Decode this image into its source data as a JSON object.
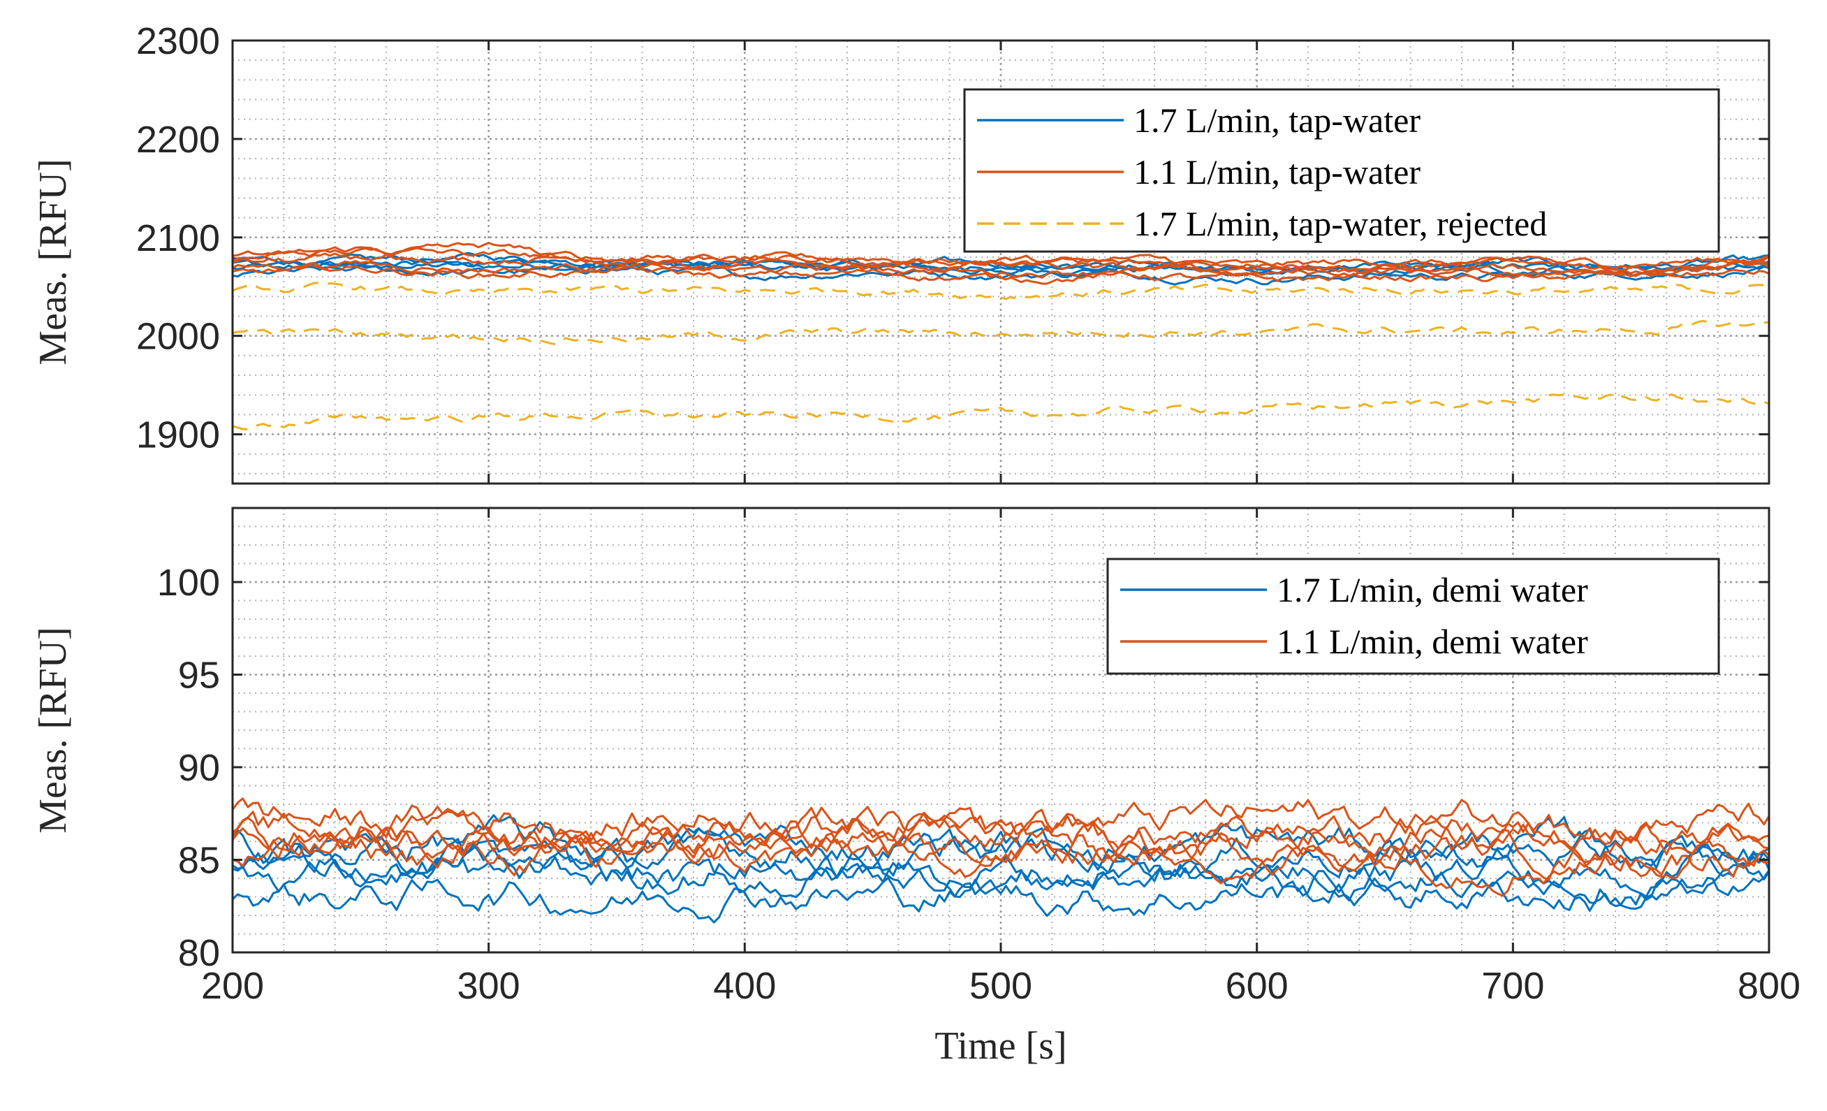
{
  "colors": {
    "blue": "#0072BD",
    "orange": "#D95319",
    "yellow": "#EDB120",
    "axis": "#262626",
    "grid": "#b0b0b0"
  },
  "chart_data": [
    {
      "type": "line",
      "ylabel": "Meas. [RFU]",
      "xlabel": "",
      "xlim": [
        200,
        800
      ],
      "ylim": [
        1850,
        2300
      ],
      "xticks": [
        "200",
        "300",
        "400",
        "500",
        "600",
        "700",
        "800"
      ],
      "yticks": [
        "1900",
        "2000",
        "2100",
        "2200",
        "2300"
      ],
      "grid": true,
      "minor_grid": true,
      "legend_position": "top-right",
      "legend": [
        {
          "label": "1.7 L/min, tap-water",
          "color": "#0072BD",
          "dashed": false
        },
        {
          "label": "1.1 L/min, tap-water",
          "color": "#D95319",
          "dashed": false
        },
        {
          "label": "1.7 L/min, tap-water, rejected",
          "color": "#EDB120",
          "dashed": true
        }
      ],
      "series": [
        {
          "group": 0,
          "x": [
            200,
            250,
            300,
            350,
            400,
            450,
            500,
            550,
            600,
            650,
            700,
            750,
            800
          ],
          "y": [
            2068,
            2072,
            2070,
            2075,
            2068,
            2072,
            2066,
            2070,
            2064,
            2068,
            2070,
            2066,
            2072
          ]
        },
        {
          "group": 0,
          "x": [
            200,
            250,
            300,
            350,
            400,
            450,
            500,
            550,
            600,
            650,
            700,
            750,
            800
          ],
          "y": [
            2078,
            2075,
            2080,
            2074,
            2078,
            2070,
            2074,
            2068,
            2072,
            2066,
            2074,
            2070,
            2076
          ]
        },
        {
          "group": 0,
          "x": [
            200,
            250,
            300,
            350,
            400,
            450,
            500,
            550,
            600,
            650,
            700,
            750,
            800
          ],
          "y": [
            2062,
            2066,
            2064,
            2068,
            2060,
            2066,
            2062,
            2064,
            2058,
            2062,
            2060,
            2064,
            2066
          ]
        },
        {
          "group": 0,
          "x": [
            200,
            250,
            300,
            350,
            400,
            450,
            500,
            550,
            600,
            650,
            700,
            750,
            800
          ],
          "y": [
            2072,
            2069,
            2076,
            2072,
            2074,
            2068,
            2070,
            2072,
            2066,
            2070,
            2068,
            2072,
            2070
          ]
        },
        {
          "group": 1,
          "x": [
            200,
            250,
            300,
            350,
            400,
            450,
            500,
            550,
            600,
            650,
            700,
            750,
            800
          ],
          "y": [
            2080,
            2085,
            2078,
            2082,
            2076,
            2080,
            2074,
            2078,
            2070,
            2076,
            2072,
            2074,
            2080
          ]
        },
        {
          "group": 1,
          "x": [
            200,
            250,
            300,
            350,
            400,
            450,
            500,
            550,
            600,
            650,
            700,
            750,
            800
          ],
          "y": [
            2070,
            2074,
            2068,
            2072,
            2066,
            2070,
            2064,
            2068,
            2062,
            2066,
            2064,
            2068,
            2070
          ]
        },
        {
          "group": 1,
          "x": [
            200,
            250,
            300,
            350,
            400,
            450,
            500,
            550,
            600,
            650,
            700,
            750,
            800
          ],
          "y": [
            2076,
            2088,
            2082,
            2078,
            2080,
            2074,
            2078,
            2072,
            2076,
            2070,
            2074,
            2070,
            2076
          ]
        },
        {
          "group": 1,
          "x": [
            200,
            250,
            300,
            350,
            400,
            450,
            500,
            550,
            600,
            650,
            700,
            750,
            800
          ],
          "y": [
            2064,
            2068,
            2062,
            2066,
            2060,
            2064,
            2058,
            2062,
            2056,
            2060,
            2058,
            2062,
            2064
          ]
        },
        {
          "group": 1,
          "x": [
            200,
            250,
            300,
            350,
            400,
            450,
            500,
            550,
            600,
            650,
            700,
            750,
            800
          ],
          "y": [
            2074,
            2078,
            2090,
            2072,
            2074,
            2068,
            2072,
            2066,
            2070,
            2064,
            2068,
            2066,
            2072
          ]
        },
        {
          "group": 2,
          "x": [
            200,
            250,
            300,
            350,
            400,
            450,
            500,
            550,
            600,
            650,
            700,
            750,
            800
          ],
          "y": [
            2045,
            2048,
            2042,
            2046,
            2044,
            2048,
            2042,
            2046,
            2044,
            2048,
            2046,
            2044,
            2050
          ]
        },
        {
          "group": 2,
          "x": [
            200,
            250,
            300,
            350,
            400,
            450,
            500,
            550,
            600,
            650,
            700,
            750,
            800
          ],
          "y": [
            2005,
            2002,
            2000,
            1998,
            2000,
            2004,
            2002,
            2006,
            2004,
            2006,
            2004,
            2006,
            2012
          ]
        },
        {
          "group": 2,
          "x": [
            200,
            250,
            300,
            350,
            400,
            450,
            500,
            550,
            600,
            650,
            700,
            750,
            800
          ],
          "y": [
            1908,
            1916,
            1918,
            1920,
            1918,
            1920,
            1918,
            1924,
            1926,
            1930,
            1934,
            1938,
            1932
          ]
        }
      ]
    },
    {
      "type": "line",
      "ylabel": "Meas. [RFU]",
      "xlabel": "Time [s]",
      "xlim": [
        200,
        800
      ],
      "ylim": [
        80,
        104
      ],
      "xticks": [
        "200",
        "300",
        "400",
        "500",
        "600",
        "700",
        "800"
      ],
      "yticks": [
        "80",
        "85",
        "90",
        "95",
        "100"
      ],
      "grid": true,
      "minor_grid": true,
      "legend_position": "top-right",
      "legend": [
        {
          "label": "1.7 L/min, demi water",
          "color": "#0072BD",
          "dashed": false
        },
        {
          "label": "1.1 L/min, demi water",
          "color": "#D95319",
          "dashed": false
        }
      ],
      "series": [
        {
          "group": 0,
          "x": [
            200,
            250,
            300,
            350,
            400,
            450,
            500,
            550,
            600,
            650,
            700,
            750,
            800
          ],
          "y": [
            84.5,
            84.2,
            84.6,
            84.0,
            84.8,
            84.1,
            84.4,
            84.2,
            84.6,
            84.3,
            84.5,
            84.0,
            84.4
          ]
        },
        {
          "group": 0,
          "x": [
            200,
            250,
            300,
            350,
            400,
            450,
            500,
            550,
            600,
            650,
            700,
            750,
            800
          ],
          "y": [
            85.5,
            85.0,
            85.4,
            84.9,
            85.6,
            85.1,
            85.3,
            85.0,
            85.5,
            85.2,
            85.4,
            85.0,
            85.2
          ]
        },
        {
          "group": 0,
          "x": [
            200,
            250,
            300,
            350,
            400,
            450,
            500,
            550,
            600,
            650,
            700,
            750,
            800
          ],
          "y": [
            83.4,
            83.0,
            83.3,
            82.8,
            83.5,
            83.0,
            83.2,
            82.9,
            83.4,
            83.1,
            83.2,
            82.8,
            83.3
          ]
        },
        {
          "group": 0,
          "x": [
            200,
            250,
            300,
            350,
            400,
            450,
            500,
            550,
            600,
            650,
            700,
            750,
            800
          ],
          "y": [
            86.0,
            85.6,
            86.2,
            85.5,
            86.1,
            85.7,
            86.0,
            85.5,
            86.1,
            85.8,
            86.0,
            85.6,
            85.9
          ]
        },
        {
          "group": 0,
          "x": [
            200,
            250,
            300,
            350,
            400,
            450,
            500,
            550,
            600,
            650,
            700,
            750,
            800
          ],
          "y": [
            84.0,
            84.4,
            83.8,
            84.2,
            83.7,
            84.3,
            83.9,
            84.1,
            83.8,
            84.4,
            83.9,
            84.2,
            84.0
          ]
        },
        {
          "group": 1,
          "x": [
            200,
            250,
            300,
            350,
            400,
            450,
            500,
            550,
            600,
            650,
            700,
            750,
            800
          ],
          "y": [
            86.5,
            86.2,
            86.8,
            86.0,
            86.6,
            86.1,
            86.4,
            86.2,
            86.7,
            86.3,
            86.5,
            86.1,
            86.4
          ]
        },
        {
          "group": 1,
          "x": [
            200,
            250,
            300,
            350,
            400,
            450,
            500,
            550,
            600,
            650,
            700,
            750,
            800
          ],
          "y": [
            87.5,
            87.0,
            87.4,
            86.9,
            87.6,
            87.1,
            87.3,
            87.0,
            87.5,
            87.2,
            87.4,
            87.0,
            87.2
          ]
        },
        {
          "group": 1,
          "x": [
            200,
            250,
            300,
            350,
            400,
            450,
            500,
            550,
            600,
            650,
            700,
            750,
            800
          ],
          "y": [
            85.6,
            85.3,
            85.8,
            85.2,
            85.7,
            85.3,
            85.5,
            85.2,
            85.8,
            85.4,
            85.6,
            85.2,
            85.5
          ]
        },
        {
          "group": 1,
          "x": [
            200,
            250,
            300,
            350,
            400,
            450,
            500,
            550,
            600,
            650,
            700,
            750,
            800
          ],
          "y": [
            86.0,
            86.6,
            86.1,
            86.5,
            86.0,
            86.7,
            86.2,
            86.4,
            86.0,
            86.6,
            86.2,
            86.5,
            86.3
          ]
        },
        {
          "group": 1,
          "x": [
            200,
            250,
            300,
            350,
            400,
            450,
            500,
            550,
            600,
            650,
            700,
            750,
            800
          ],
          "y": [
            85.0,
            85.4,
            85.1,
            85.5,
            85.0,
            85.3,
            85.2,
            85.6,
            85.1,
            85.4,
            85.0,
            85.3,
            85.2
          ]
        }
      ]
    }
  ]
}
